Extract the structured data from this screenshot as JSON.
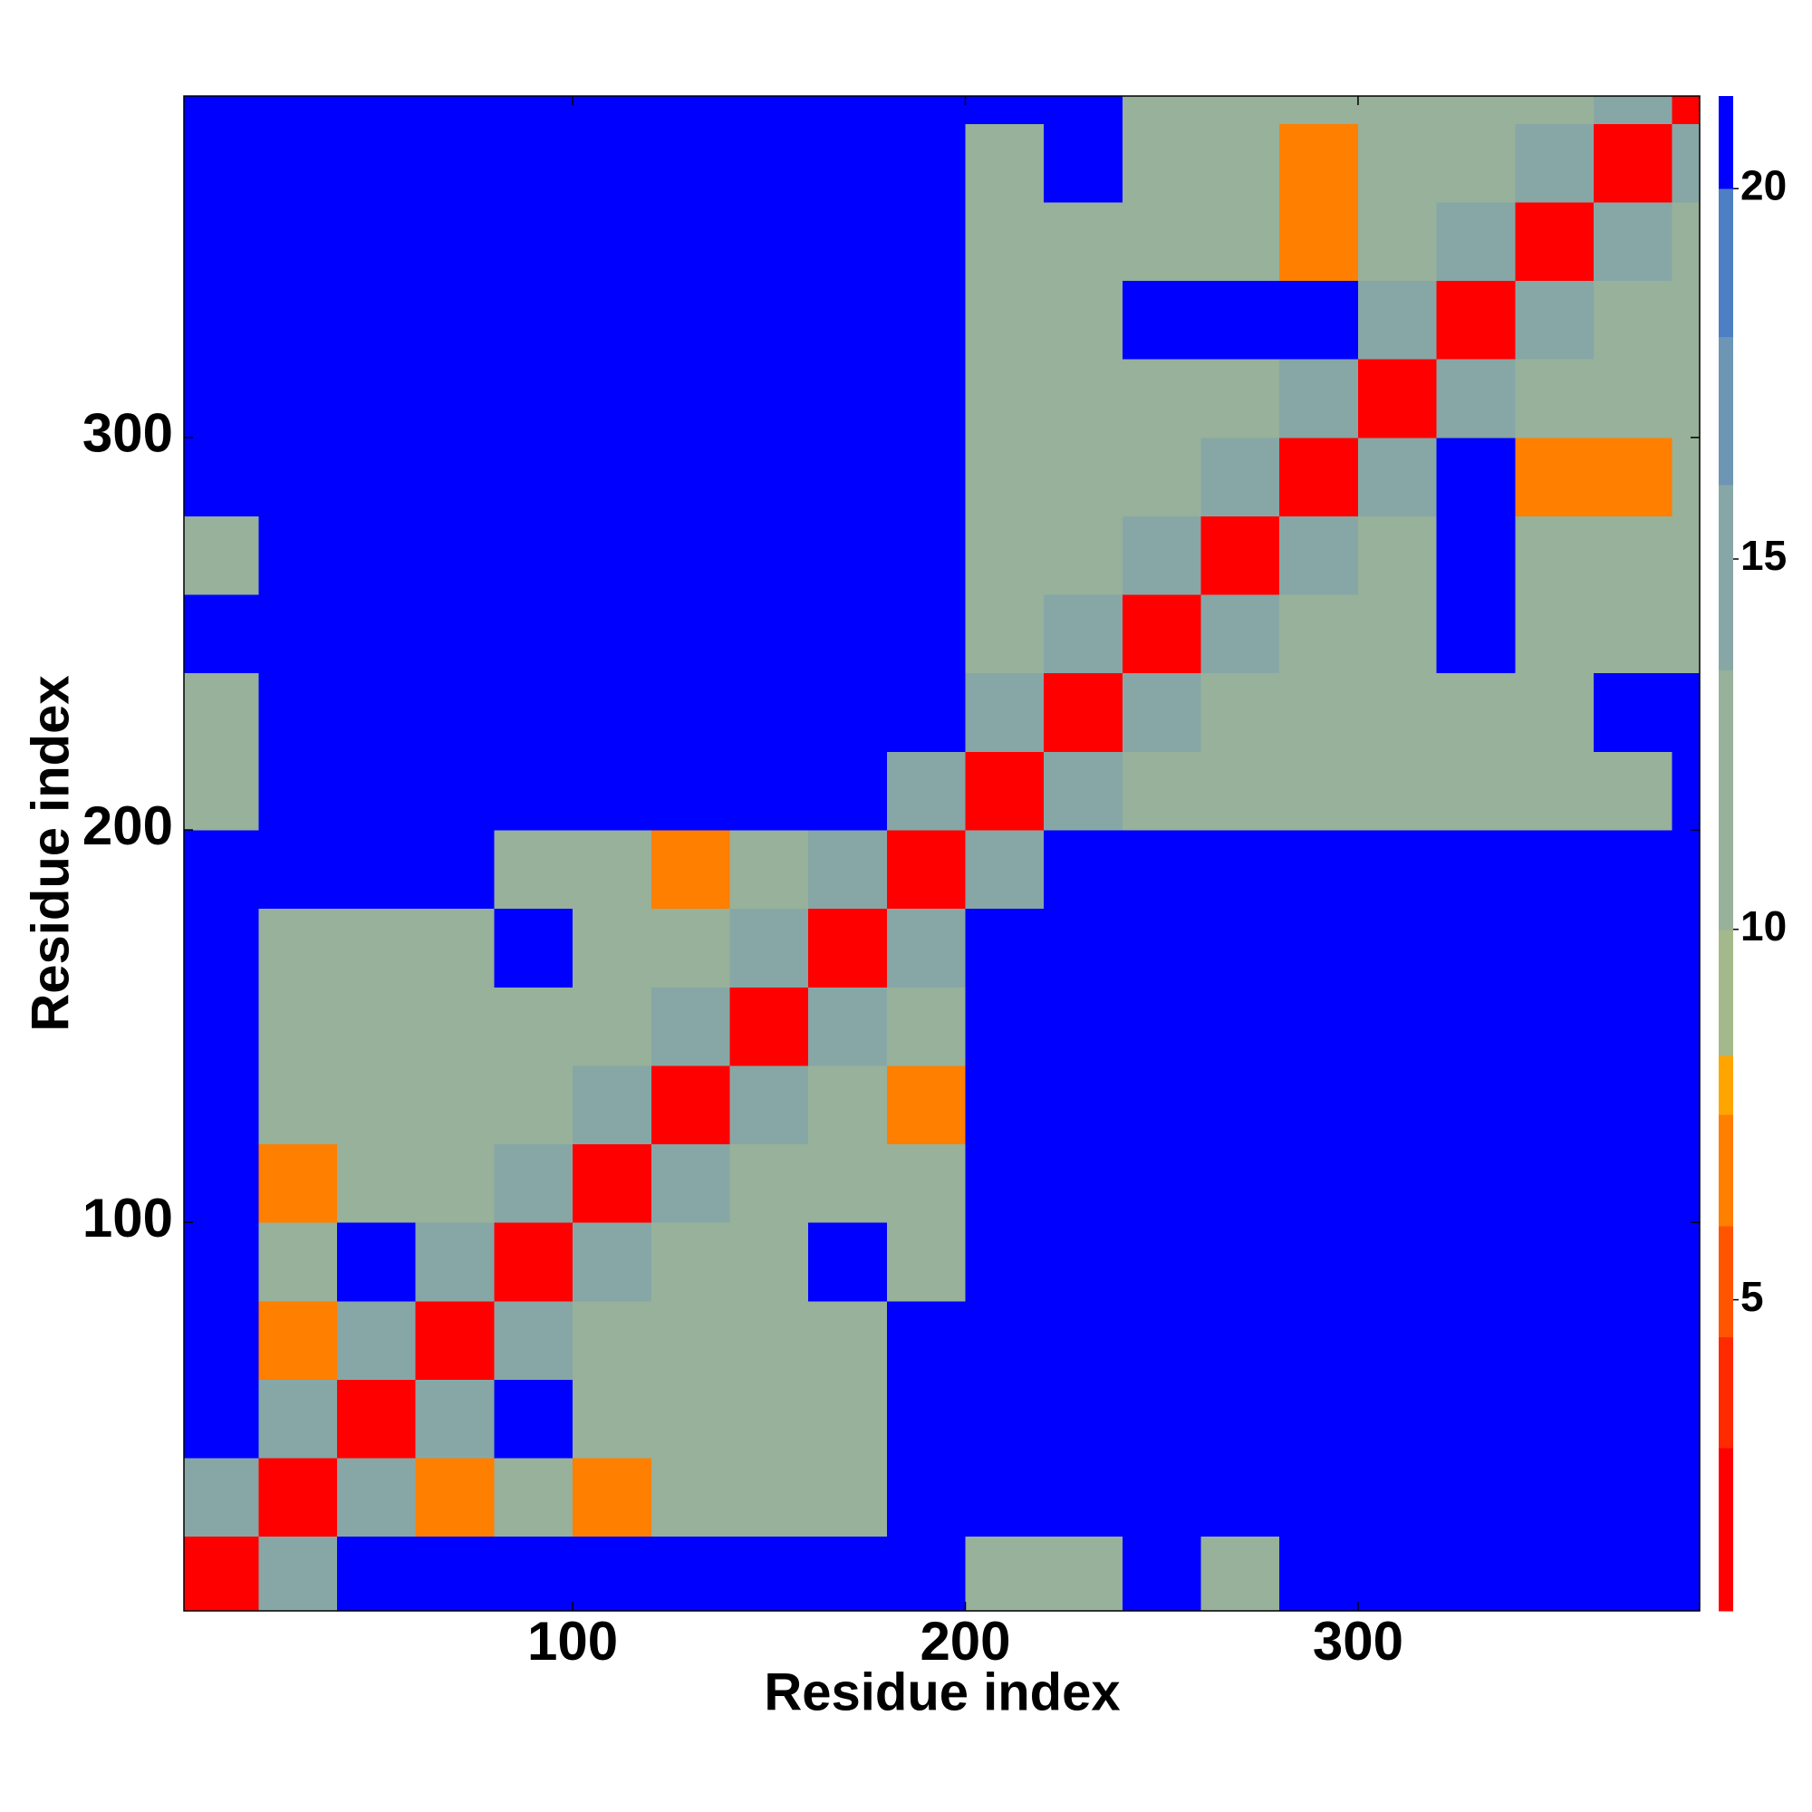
{
  "chart_data": {
    "type": "heatmap",
    "xlabel": "Residue index",
    "ylabel": "Residue index",
    "xlim": [
      1,
      387
    ],
    "ylim": [
      1,
      387
    ],
    "xticks": [
      100,
      200,
      300
    ],
    "yticks": [
      100,
      200,
      300
    ],
    "xbins": [
      1,
      20,
      40,
      60,
      80,
      100,
      120,
      140,
      160,
      180,
      200,
      220,
      240,
      260,
      280,
      300,
      320,
      340,
      360,
      380,
      387
    ],
    "ybins": [
      1,
      20,
      40,
      60,
      80,
      100,
      120,
      140,
      160,
      180,
      200,
      220,
      240,
      260,
      280,
      300,
      320,
      340,
      360,
      380,
      387
    ],
    "z": [
      [
        3,
        15,
        21,
        21,
        21,
        21,
        21,
        21,
        21,
        21,
        13,
        13,
        21,
        13,
        21,
        21,
        21,
        21,
        21,
        21
      ],
      [
        15,
        3,
        15,
        7,
        13,
        7,
        13,
        13,
        13,
        21,
        21,
        21,
        21,
        21,
        21,
        21,
        21,
        21,
        21,
        21
      ],
      [
        21,
        15,
        3,
        15,
        21,
        13,
        13,
        13,
        13,
        21,
        21,
        21,
        21,
        21,
        21,
        21,
        21,
        21,
        21,
        21
      ],
      [
        21,
        7,
        15,
        3,
        15,
        13,
        13,
        13,
        13,
        21,
        21,
        21,
        21,
        21,
        21,
        21,
        21,
        21,
        21,
        21
      ],
      [
        21,
        13,
        21,
        15,
        3,
        15,
        13,
        13,
        21,
        13,
        21,
        21,
        21,
        21,
        21,
        21,
        21,
        21,
        21,
        21
      ],
      [
        21,
        7,
        13,
        13,
        15,
        3,
        15,
        13,
        13,
        13,
        21,
        21,
        21,
        21,
        21,
        21,
        21,
        21,
        21,
        21
      ],
      [
        21,
        13,
        13,
        13,
        13,
        15,
        3,
        15,
        13,
        7,
        21,
        21,
        21,
        21,
        21,
        21,
        21,
        21,
        21,
        21
      ],
      [
        21,
        13,
        13,
        13,
        13,
        13,
        15,
        3,
        15,
        13,
        21,
        21,
        21,
        21,
        21,
        21,
        21,
        21,
        21,
        21
      ],
      [
        21,
        13,
        13,
        13,
        21,
        13,
        13,
        15,
        3,
        15,
        21,
        21,
        21,
        21,
        21,
        21,
        21,
        21,
        21,
        21
      ],
      [
        21,
        21,
        21,
        21,
        13,
        13,
        7,
        13,
        15,
        3,
        15,
        21,
        21,
        21,
        21,
        21,
        21,
        21,
        21,
        21
      ],
      [
        13,
        21,
        21,
        21,
        21,
        21,
        21,
        21,
        21,
        15,
        3,
        15,
        13,
        13,
        13,
        13,
        13,
        13,
        13,
        21
      ],
      [
        13,
        21,
        21,
        21,
        21,
        21,
        21,
        21,
        21,
        21,
        15,
        3,
        15,
        13,
        13,
        13,
        13,
        13,
        21,
        21
      ],
      [
        21,
        21,
        21,
        21,
        21,
        21,
        21,
        21,
        21,
        21,
        13,
        15,
        3,
        15,
        13,
        13,
        21,
        13,
        13,
        13
      ],
      [
        13,
        21,
        21,
        21,
        21,
        21,
        21,
        21,
        21,
        21,
        13,
        13,
        15,
        3,
        15,
        13,
        21,
        13,
        13,
        13
      ],
      [
        21,
        21,
        21,
        21,
        21,
        21,
        21,
        21,
        21,
        21,
        13,
        13,
        13,
        15,
        3,
        15,
        21,
        7,
        7,
        13
      ],
      [
        21,
        21,
        21,
        21,
        21,
        21,
        21,
        21,
        21,
        21,
        13,
        13,
        13,
        13,
        15,
        3,
        15,
        13,
        13,
        13
      ],
      [
        21,
        21,
        21,
        21,
        21,
        21,
        21,
        21,
        21,
        21,
        13,
        13,
        21,
        21,
        21,
        15,
        3,
        15,
        13,
        13
      ],
      [
        21,
        21,
        21,
        21,
        21,
        21,
        21,
        21,
        21,
        21,
        13,
        13,
        13,
        13,
        7,
        13,
        15,
        3,
        15,
        13
      ],
      [
        21,
        21,
        21,
        21,
        21,
        21,
        21,
        21,
        21,
        21,
        13,
        21,
        13,
        13,
        7,
        13,
        13,
        15,
        3,
        15
      ],
      [
        21,
        21,
        21,
        21,
        21,
        21,
        21,
        21,
        21,
        21,
        21,
        21,
        13,
        13,
        13,
        13,
        13,
        13,
        15,
        3
      ]
    ],
    "clim": [
      0.8,
      21.25
    ],
    "cticks": [
      5,
      10,
      15,
      20
    ],
    "colorscale": [
      {
        "max": 3,
        "color": "#ff0000"
      },
      {
        "max": 4.5,
        "color": "#ff2a00"
      },
      {
        "max": 6,
        "color": "#ff5500"
      },
      {
        "max": 7.5,
        "color": "#ff7f00"
      },
      {
        "max": 8.3,
        "color": "#ffa500"
      },
      {
        "max": 10,
        "color": "#a3b98c"
      },
      {
        "max": 13.5,
        "color": "#97b19a"
      },
      {
        "max": 16,
        "color": "#87a7a6"
      },
      {
        "max": 18,
        "color": "#6d95b4"
      },
      {
        "max": 20,
        "color": "#4d7fc4"
      },
      {
        "max": 21.25,
        "color": "#0000ff"
      }
    ]
  }
}
